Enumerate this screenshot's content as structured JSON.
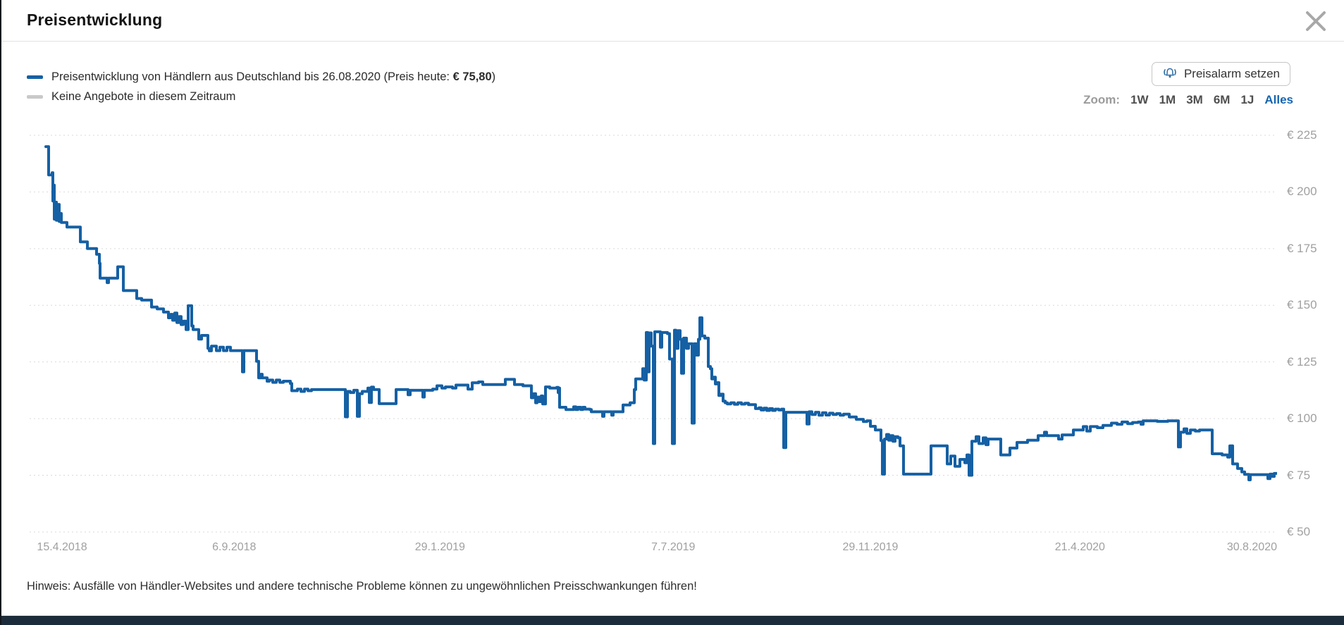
{
  "header": {
    "title": "Preisentwicklung"
  },
  "legend": {
    "series1_pre": "Preisentwicklung von Händlern aus Deutschland bis 26.08.2020 (Preis heute: ",
    "series1_price": "€ 75,80",
    "series1_post": ")",
    "series1_color": "#1560a4",
    "series2_label": "Keine Angebote in diesem Zeitraum",
    "series2_color": "#c9c9c9"
  },
  "controls": {
    "price_alert_label": "Preisalarm setzen",
    "zoom_label": "Zoom:",
    "zoom_options": [
      "1W",
      "1M",
      "3M",
      "6M",
      "1J",
      "Alles"
    ],
    "zoom_active": "Alles"
  },
  "footer": {
    "hint": "Hinweis: Ausfälle von Händler-Websites und andere technische Probleme können zu ungewöhnlichen Preisschwankungen führen!"
  },
  "chart_data": {
    "type": "line",
    "title": "Preisentwicklung",
    "currency": "EUR",
    "price_today": 75.8,
    "line_color": "#1560a4",
    "no_offers_color": "#c9c9c9",
    "grid": true,
    "legend_position": "top-left",
    "ylim": [
      50,
      225
    ],
    "y_ticks": [
      {
        "label": "€ 225",
        "value": 225
      },
      {
        "label": "€ 200",
        "value": 200
      },
      {
        "label": "€ 175",
        "value": 175
      },
      {
        "label": "€ 150",
        "value": 150
      },
      {
        "label": "€ 125",
        "value": 125
      },
      {
        "label": "€ 100",
        "value": 100
      },
      {
        "label": "€ 75",
        "value": 75
      },
      {
        "label": "€ 50",
        "value": 50
      }
    ],
    "x_ticks": [
      {
        "label": "15.4.2018",
        "pos": 0.026
      },
      {
        "label": "6.9.2018",
        "pos": 0.164
      },
      {
        "label": "29.1.2019",
        "pos": 0.329
      },
      {
        "label": "7.7.2019",
        "pos": 0.516
      },
      {
        "label": "29.11.2019",
        "pos": 0.674
      },
      {
        "label": "21.4.2020",
        "pos": 0.842
      },
      {
        "label": "30.8.2020",
        "pos": 1.0
      }
    ],
    "points": [
      [
        23,
        220
      ],
      [
        27,
        207.5
      ],
      [
        32,
        208.5
      ],
      [
        33,
        196
      ],
      [
        34,
        203
      ],
      [
        35,
        188
      ],
      [
        36,
        195.5
      ],
      [
        38,
        187.5
      ],
      [
        40,
        194.5
      ],
      [
        42,
        187
      ],
      [
        43,
        190.5
      ],
      [
        45,
        186.5
      ],
      [
        53,
        184.5
      ],
      [
        72,
        178
      ],
      [
        82,
        175
      ],
      [
        95,
        172.5
      ],
      [
        99,
        168.5
      ],
      [
        100,
        162
      ],
      [
        110,
        160
      ],
      [
        112,
        162
      ],
      [
        125,
        167
      ],
      [
        133,
        156.5
      ],
      [
        152,
        153
      ],
      [
        159,
        152.3
      ],
      [
        173,
        149.2
      ],
      [
        181,
        148.4
      ],
      [
        190,
        147
      ],
      [
        197,
        144.5
      ],
      [
        200,
        146
      ],
      [
        203,
        143.4
      ],
      [
        206,
        146.6
      ],
      [
        209,
        142.4
      ],
      [
        212,
        145
      ],
      [
        215,
        141.5
      ],
      [
        218,
        143
      ],
      [
        222,
        139.3
      ],
      [
        225,
        149.8
      ],
      [
        230,
        140.9
      ],
      [
        232,
        139.3
      ],
      [
        240,
        135.1
      ],
      [
        244,
        136.7
      ],
      [
        253,
        131
      ],
      [
        255,
        129.9
      ],
      [
        258,
        132
      ],
      [
        265,
        130
      ],
      [
        270,
        131.5
      ],
      [
        275,
        130
      ],
      [
        280,
        131.5
      ],
      [
        285,
        130
      ],
      [
        302,
        120.6
      ],
      [
        304,
        130
      ],
      [
        322,
        125.3
      ],
      [
        325,
        118
      ],
      [
        328,
        119.6
      ],
      [
        330,
        118
      ],
      [
        337,
        116.5
      ],
      [
        340,
        117
      ],
      [
        345,
        116
      ],
      [
        350,
        117
      ],
      [
        355,
        116
      ],
      [
        360,
        116.5
      ],
      [
        370,
        115.5
      ],
      [
        372,
        112.3
      ],
      [
        380,
        113
      ],
      [
        385,
        112
      ],
      [
        390,
        113
      ],
      [
        395,
        112.3
      ],
      [
        400,
        112.8
      ],
      [
        448,
        100.8
      ],
      [
        451,
        112
      ],
      [
        455,
        111.5
      ],
      [
        460,
        112.5
      ],
      [
        465,
        101
      ],
      [
        468,
        111
      ],
      [
        472,
        112
      ],
      [
        480,
        113.5
      ],
      [
        482,
        107.1
      ],
      [
        485,
        113.9
      ],
      [
        488,
        112.8
      ],
      [
        496,
        106.6
      ],
      [
        520,
        112.8
      ],
      [
        537,
        110.5
      ],
      [
        540,
        112.5
      ],
      [
        558,
        109.5
      ],
      [
        560,
        112.5
      ],
      [
        572,
        113
      ],
      [
        578,
        114.5
      ],
      [
        585,
        113.5
      ],
      [
        590,
        114
      ],
      [
        600,
        113.5
      ],
      [
        605,
        114.8
      ],
      [
        622,
        113
      ],
      [
        628,
        115.8
      ],
      [
        637,
        116.2
      ],
      [
        643,
        115
      ],
      [
        675,
        117.3
      ],
      [
        688,
        115
      ],
      [
        700,
        114.5
      ],
      [
        712,
        109.2
      ],
      [
        715,
        111
      ],
      [
        718,
        107
      ],
      [
        720,
        109.5
      ],
      [
        723,
        107.5
      ],
      [
        726,
        110
      ],
      [
        728,
        106.5
      ],
      [
        732,
        114
      ],
      [
        738,
        113.5
      ],
      [
        748,
        113.8
      ],
      [
        750,
        111.5
      ],
      [
        751,
        113.5
      ],
      [
        752,
        105
      ],
      [
        761,
        104
      ],
      [
        772,
        105.2
      ],
      [
        775,
        104
      ],
      [
        778,
        105
      ],
      [
        782,
        104
      ],
      [
        785,
        105
      ],
      [
        788,
        104.2
      ],
      [
        795,
        104
      ],
      [
        797,
        103
      ],
      [
        813,
        101
      ],
      [
        815,
        103
      ],
      [
        826,
        101.5
      ],
      [
        828,
        103
      ],
      [
        842,
        106
      ],
      [
        852,
        107
      ],
      [
        858,
        112.8
      ],
      [
        860,
        117.5
      ],
      [
        870,
        122
      ],
      [
        872,
        117
      ],
      [
        875,
        138
      ],
      [
        877,
        120.6
      ],
      [
        879,
        137.8
      ],
      [
        882,
        132
      ],
      [
        885,
        89
      ],
      [
        887,
        138.3
      ],
      [
        895,
        131.5
      ],
      [
        897,
        138
      ],
      [
        905,
        137.5
      ],
      [
        908,
        126.3
      ],
      [
        912,
        89
      ],
      [
        915,
        139
      ],
      [
        917,
        131
      ],
      [
        920,
        138.8
      ],
      [
        923,
        135
      ],
      [
        925,
        120
      ],
      [
        928,
        135.5
      ],
      [
        932,
        131
      ],
      [
        935,
        133
      ],
      [
        940,
        98
      ],
      [
        943,
        133
      ],
      [
        946,
        128
      ],
      [
        949,
        135
      ],
      [
        951,
        144.5
      ],
      [
        954,
        136.5
      ],
      [
        958,
        135.5
      ],
      [
        963,
        123
      ],
      [
        966,
        122
      ],
      [
        968,
        117.5
      ],
      [
        970,
        118.3
      ],
      [
        973,
        115.3
      ],
      [
        976,
        115.9
      ],
      [
        978,
        110.2
      ],
      [
        981,
        110.8
      ],
      [
        984,
        107.7
      ],
      [
        987,
        107
      ],
      [
        990,
        106.5
      ],
      [
        995,
        107
      ],
      [
        1000,
        106.3
      ],
      [
        1005,
        107
      ],
      [
        1010,
        106.4
      ],
      [
        1015,
        106.8
      ],
      [
        1020,
        106.2
      ],
      [
        1030,
        104.4
      ],
      [
        1035,
        104.8
      ],
      [
        1038,
        103.8
      ],
      [
        1042,
        104.6
      ],
      [
        1046,
        103.6
      ],
      [
        1050,
        104.4
      ],
      [
        1054,
        103.6
      ],
      [
        1058,
        104.2
      ],
      [
        1063,
        103.8
      ],
      [
        1067,
        104.2
      ],
      [
        1070,
        87.2
      ],
      [
        1073,
        102.8
      ],
      [
        1103,
        97.6
      ],
      [
        1106,
        103
      ],
      [
        1110,
        101.8
      ],
      [
        1115,
        102.8
      ],
      [
        1120,
        101.5
      ],
      [
        1125,
        102.6
      ],
      [
        1130,
        101.6
      ],
      [
        1135,
        102.4
      ],
      [
        1140,
        101.8
      ],
      [
        1145,
        102.2
      ],
      [
        1150,
        101.5
      ],
      [
        1155,
        102
      ],
      [
        1163,
        100.7
      ],
      [
        1173,
        99.7
      ],
      [
        1183,
        98.7
      ],
      [
        1188,
        99
      ],
      [
        1193,
        96.6
      ],
      [
        1200,
        95
      ],
      [
        1208,
        90.3
      ],
      [
        1210,
        75.5
      ],
      [
        1213,
        91
      ],
      [
        1216,
        93
      ],
      [
        1219,
        90.5
      ],
      [
        1222,
        92.5
      ],
      [
        1225,
        90
      ],
      [
        1228,
        92
      ],
      [
        1232,
        91.5
      ],
      [
        1235,
        88
      ],
      [
        1240,
        75.5
      ],
      [
        1279,
        88
      ],
      [
        1302,
        80
      ],
      [
        1307,
        83.5
      ],
      [
        1313,
        79
      ],
      [
        1320,
        82
      ],
      [
        1327,
        80.5
      ],
      [
        1330,
        84
      ],
      [
        1333,
        75
      ],
      [
        1337,
        90
      ],
      [
        1343,
        92
      ],
      [
        1347,
        89
      ],
      [
        1353,
        91.5
      ],
      [
        1357,
        88.5
      ],
      [
        1360,
        91
      ],
      [
        1378,
        84
      ],
      [
        1391,
        87
      ],
      [
        1401,
        89.5
      ],
      [
        1416,
        90.5
      ],
      [
        1431,
        92.5
      ],
      [
        1440,
        94
      ],
      [
        1443,
        92.5
      ],
      [
        1460,
        91
      ],
      [
        1465,
        92.8
      ],
      [
        1481,
        95
      ],
      [
        1495,
        96.5
      ],
      [
        1500,
        94.5
      ],
      [
        1505,
        96.5
      ],
      [
        1515,
        96
      ],
      [
        1523,
        97
      ],
      [
        1535,
        98
      ],
      [
        1543,
        97.5
      ],
      [
        1550,
        98.5
      ],
      [
        1558,
        97.8
      ],
      [
        1565,
        98.3
      ],
      [
        1573,
        98.5
      ],
      [
        1577,
        97.5
      ],
      [
        1580,
        99
      ],
      [
        1600,
        98.8
      ],
      [
        1615,
        99
      ],
      [
        1630,
        87.5
      ],
      [
        1633,
        94
      ],
      [
        1638,
        95.5
      ],
      [
        1642,
        93.5
      ],
      [
        1647,
        95
      ],
      [
        1654,
        94.5
      ],
      [
        1660,
        95
      ],
      [
        1678,
        84.5
      ],
      [
        1692,
        84
      ],
      [
        1700,
        83
      ],
      [
        1703,
        88
      ],
      [
        1707,
        80
      ],
      [
        1714,
        78
      ],
      [
        1720,
        76.5
      ],
      [
        1724,
        75.4
      ],
      [
        1730,
        73
      ],
      [
        1732,
        75.3
      ],
      [
        1757,
        73.5
      ],
      [
        1760,
        75.5
      ],
      [
        1763,
        74.5
      ],
      [
        1766,
        75.8
      ],
      [
        1770,
        75.8
      ]
    ]
  }
}
